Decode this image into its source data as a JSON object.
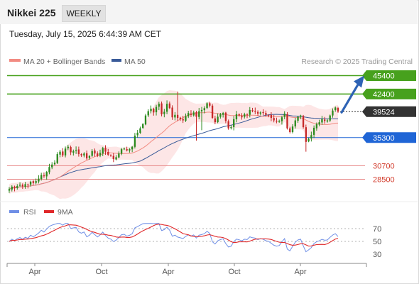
{
  "header": {
    "title": "Nikkei 225",
    "timeframe": "WEEKLY",
    "datetime": "Tuesday, July 15, 2025 6:44:39 AM CET"
  },
  "legend": {
    "ma20": "MA 20 + Bollinger Bands",
    "ma50": "MA 50",
    "source": "Research © 2025 Trading Central",
    "rsi": "RSI",
    "rsi_ma": "9MA"
  },
  "colors": {
    "up": "#2b8a1e",
    "down": "#c62828",
    "ma20": "#f28b82",
    "ma50": "#3a5b99",
    "bands_fill": "#fde2e2",
    "resistance": "#47a11d",
    "pivot": "#1f65d6",
    "support": "#e88a8a",
    "price": "#333333",
    "rsi": "#6f8fe6",
    "rsi_ma": "#e0282a"
  },
  "chart_data": [
    {
      "type": "candlestick",
      "title": "Nikkei 225",
      "price_axis_range": [
        26000,
        46500
      ],
      "last_price": 39524,
      "forecast": "arrow up toward 45400",
      "levels": [
        {
          "value": 45400,
          "label": "45400",
          "kind": "resistance"
        },
        {
          "value": 42400,
          "label": "42400",
          "kind": "resistance"
        },
        {
          "value": 39524,
          "label": "39524",
          "kind": "last"
        },
        {
          "value": 35300,
          "label": "35300",
          "kind": "pivot"
        },
        {
          "value": 30700,
          "label": "30700",
          "kind": "support"
        },
        {
          "value": 28500,
          "label": "28500",
          "kind": "support"
        }
      ],
      "x_ticks": [
        "Apr",
        "Oct",
        "Apr",
        "Oct",
        "Apr"
      ],
      "closes": [
        26900,
        27300,
        27050,
        27400,
        27600,
        27350,
        27700,
        27550,
        28100,
        27900,
        28200,
        28600,
        29200,
        29000,
        29700,
        30500,
        30900,
        31200,
        32600,
        33000,
        32400,
        33500,
        33800,
        32900,
        33100,
        33300,
        32600,
        32400,
        32700,
        31900,
        32300,
        33100,
        32700,
        32300,
        32800,
        33600,
        33000,
        32500,
        32300,
        31800,
        32100,
        32700,
        33400,
        33500,
        33200,
        33400,
        33800,
        35600,
        36100,
        36800,
        37500,
        38900,
        39600,
        40000,
        39400,
        40300,
        40800,
        39100,
        39500,
        40800,
        40100,
        38600,
        39000,
        38500,
        38300,
        38100,
        38800,
        39300,
        39000,
        39400,
        38700,
        39600,
        39800,
        40100,
        40900,
        40500,
        38500,
        37800,
        38700,
        39100,
        39300,
        38000,
        36800,
        37000,
        38300,
        39100,
        38900,
        38600,
        39100,
        39000,
        39800,
        39600,
        39500,
        39200,
        39400,
        39300,
        39000,
        38900,
        38500,
        38100,
        37900,
        38000,
        38600,
        39200,
        36800,
        36200,
        37100,
        38100,
        38700,
        38900,
        37000,
        34600,
        35100,
        35700,
        36900,
        37500,
        37800,
        38300,
        38000,
        38100,
        38900,
        39700,
        40200,
        39524
      ]
    },
    {
      "type": "line",
      "title": "RSI",
      "series": [
        {
          "name": "RSI"
        },
        {
          "name": "9MA"
        }
      ],
      "y_ticks": [
        70,
        50,
        30
      ],
      "ylim": [
        20,
        80
      ],
      "reference_lines": [
        70,
        50
      ]
    }
  ]
}
